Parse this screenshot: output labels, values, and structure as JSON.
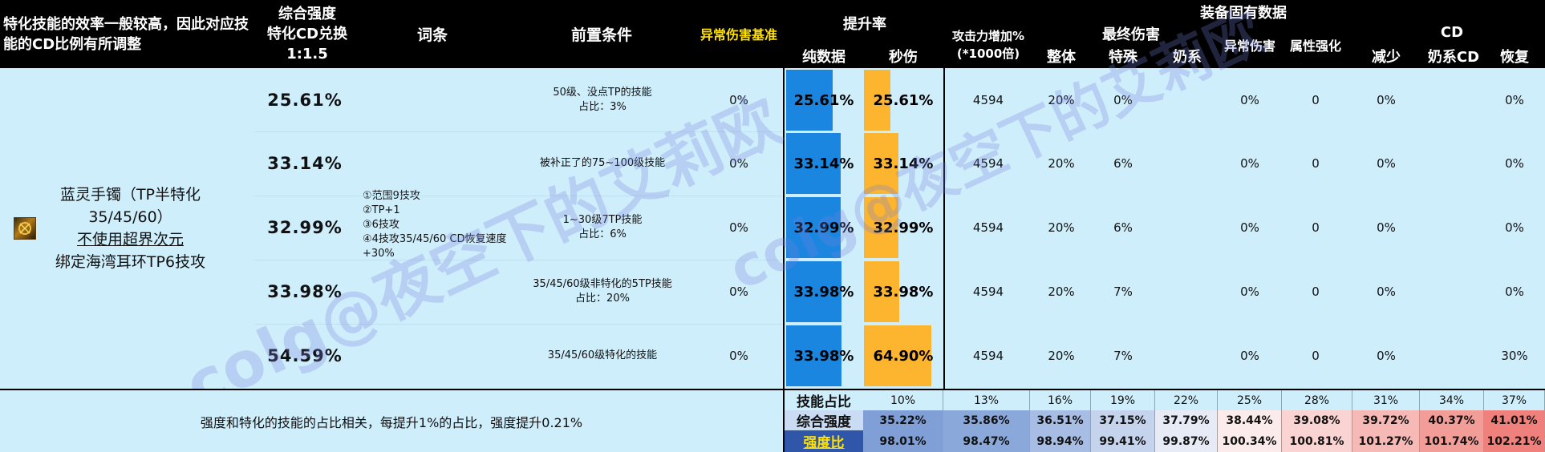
{
  "header": {
    "note": "特化技能的效率一般较高，因此对应技能的CD比例有所调整",
    "conv_l1": "综合强度",
    "conv_l2": "特化CD兑换",
    "conv_l3": "1:1.5",
    "entry": "词条",
    "precond": "前置条件",
    "abnormal_base": "异常伤害基准",
    "uplift": "提升率",
    "pure": "纯数据",
    "sec": "秒伤",
    "atk_l1": "攻击力增加%",
    "atk_l2": "(*1000倍)",
    "equip": "装备固有数据",
    "final_dmg": "最终伤害",
    "overall": "整体",
    "special": "特殊",
    "nai": "奶系",
    "abn": "异常伤害",
    "attr": "属性强化",
    "cd": "CD",
    "reduce": "减少",
    "nai_cd": "奶系CD",
    "recover": "恢复"
  },
  "item": {
    "name_l1": "蓝灵手镯（TP半特化",
    "name_l2": "35/45/60）",
    "name_l3": "不使用超界次元",
    "name_l4": "绑定海湾耳环TP6技攻",
    "icon": "bracelet-item-icon"
  },
  "entry_text": [
    "①范围9技攻",
    "②TP+1",
    "③6技攻",
    "④4技攻35/45/60 CD恢复速度+30%"
  ],
  "rows": [
    {
      "score": "25.61%",
      "cond_l1": "50级、没点TP的技能",
      "cond_l2": "占比：3%",
      "abnormal": "0%",
      "pure": "25.61%",
      "pure_val": 25.61,
      "sec": "25.61%",
      "sec_val": 25.61,
      "atk": "4594",
      "overall": "20%",
      "special": "0%",
      "nai": "",
      "abn": "0%",
      "attr": "0",
      "reduce": "0%",
      "nai_cd": "",
      "recover": "0%"
    },
    {
      "score": "33.14%",
      "cond_l1": "被补正了的75~100级技能",
      "cond_l2": "",
      "abnormal": "0%",
      "pure": "33.14%",
      "pure_val": 33.14,
      "sec": "33.14%",
      "sec_val": 33.14,
      "atk": "4594",
      "overall": "20%",
      "special": "6%",
      "nai": "",
      "abn": "0%",
      "attr": "0",
      "reduce": "0%",
      "nai_cd": "",
      "recover": "0%"
    },
    {
      "score": "32.99%",
      "cond_l1": "1~30级7TP技能",
      "cond_l2": "占比：6%",
      "abnormal": "0%",
      "pure": "32.99%",
      "pure_val": 32.99,
      "sec": "32.99%",
      "sec_val": 32.99,
      "atk": "4594",
      "overall": "20%",
      "special": "6%",
      "nai": "",
      "abn": "0%",
      "attr": "0",
      "reduce": "0%",
      "nai_cd": "",
      "recover": "0%"
    },
    {
      "score": "33.98%",
      "cond_l1": "35/45/60级非特化的5TP技能",
      "cond_l2": "占比：20%",
      "abnormal": "0%",
      "pure": "33.98%",
      "pure_val": 33.98,
      "sec": "33.98%",
      "sec_val": 33.98,
      "atk": "4594",
      "overall": "20%",
      "special": "7%",
      "nai": "",
      "abn": "0%",
      "attr": "0",
      "reduce": "0%",
      "nai_cd": "",
      "recover": "0%"
    },
    {
      "score": "54.59%",
      "cond_l1": "35/45/60级特化的技能",
      "cond_l2": "",
      "abnormal": "0%",
      "pure": "33.98%",
      "pure_val": 33.98,
      "sec": "64.90%",
      "sec_val": 64.9,
      "atk": "4594",
      "overall": "20%",
      "special": "7%",
      "nai": "",
      "abn": "0%",
      "attr": "0",
      "reduce": "0%",
      "nai_cd": "",
      "recover": "30%"
    }
  ],
  "bar_colors": {
    "pure": "#1a86e0",
    "sec": "#fdb42e"
  },
  "footer": {
    "note": "强度和特化的技能的占比相关，每提升1%的占比，强度提升0.21%",
    "row1_label": "技能占比",
    "row2_label": "综合强度",
    "row3_label": "强度比",
    "ratio": [
      "10%",
      "13%",
      "16%",
      "19%",
      "22%",
      "25%",
      "28%",
      "31%",
      "34%",
      "37%"
    ],
    "score": [
      "35.22%",
      "35.86%",
      "36.51%",
      "37.15%",
      "37.79%",
      "38.44%",
      "39.08%",
      "39.72%",
      "40.37%",
      "41.01%"
    ],
    "compare": [
      "98.01%",
      "98.47%",
      "98.94%",
      "99.41%",
      "99.87%",
      "100.34%",
      "100.81%",
      "101.27%",
      "101.74%",
      "102.21%"
    ],
    "score_colors": [
      "#7f9fd6",
      "#8aa8da",
      "#a8bde3",
      "#c5d3ec",
      "#e6ebf5",
      "#fbeceb",
      "#f9d4d2",
      "#f6b9b6",
      "#f39d99",
      "#f0807b"
    ],
    "compare_colors": [
      "#7f9fd6",
      "#8aa8da",
      "#a8bde3",
      "#c5d3ec",
      "#e6ebf5",
      "#fbeceb",
      "#f9d4d2",
      "#f6b9b6",
      "#f39d99",
      "#f0807b"
    ]
  },
  "watermark": [
    "colg@夜空下的艾莉欧",
    "colg@夜空下的艾莉欧"
  ]
}
